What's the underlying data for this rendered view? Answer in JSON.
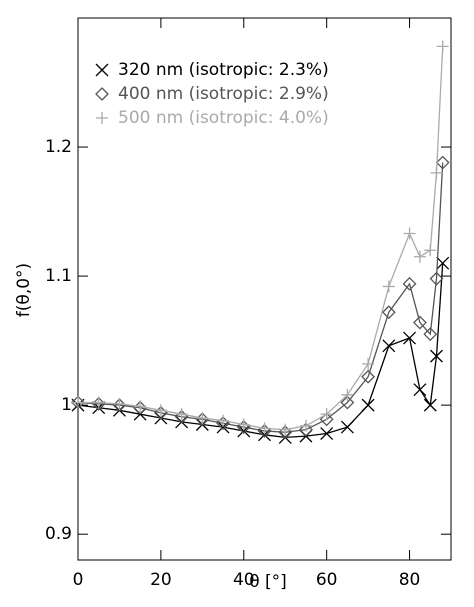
{
  "chart_data": {
    "type": "line",
    "x": [
      0,
      5,
      10,
      15,
      20,
      25,
      30,
      35,
      40,
      45,
      50,
      55,
      60,
      65,
      70,
      75,
      80,
      82.5,
      85,
      86.5,
      88
    ],
    "series": [
      {
        "name": "320 nm (isotropic: 2.3%)",
        "color": "#000000",
        "marker": "x",
        "values": [
          1.0,
          0.998,
          0.996,
          0.993,
          0.99,
          0.987,
          0.985,
          0.983,
          0.98,
          0.977,
          0.975,
          0.976,
          0.978,
          0.983,
          1.0,
          1.046,
          1.052,
          1.012,
          1.0,
          1.038,
          1.11
        ]
      },
      {
        "name": "400 nm (isotropic: 2.9%)",
        "color": "#555555",
        "marker": "diamond",
        "values": [
          1.002,
          1.001,
          1.0,
          0.998,
          0.994,
          0.991,
          0.989,
          0.986,
          0.983,
          0.98,
          0.979,
          0.981,
          0.989,
          1.002,
          1.022,
          1.072,
          1.094,
          1.064,
          1.055,
          1.098,
          1.188
        ]
      },
      {
        "name": "500 nm (isotropic: 4.0%)",
        "color": "#aaaaaa",
        "marker": "plus",
        "values": [
          1.002,
          1.002,
          1.001,
          0.999,
          0.996,
          0.993,
          0.99,
          0.988,
          0.985,
          0.982,
          0.981,
          0.984,
          0.993,
          1.008,
          1.032,
          1.092,
          1.133,
          1.115,
          1.12,
          1.18,
          1.278
        ]
      }
    ],
    "xlabel": "θ [°]",
    "ylabel": "f(θ,0°)",
    "xlim": [
      0,
      90
    ],
    "xticks": [
      0,
      20,
      40,
      60,
      80
    ],
    "ylim": [
      0.88,
      1.3
    ],
    "yticks": [
      0.9,
      1.0,
      1.1,
      1.2
    ],
    "legend": "upper left"
  }
}
